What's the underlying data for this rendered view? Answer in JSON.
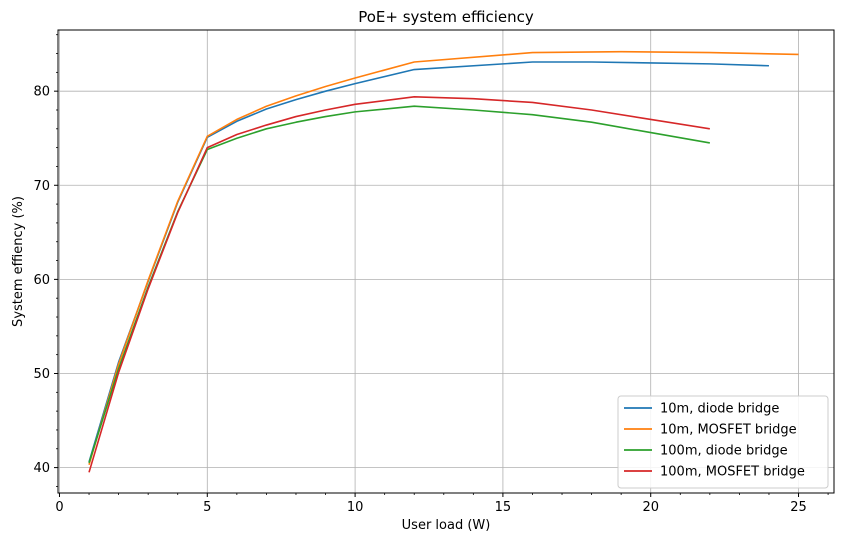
{
  "chart_data": {
    "type": "line",
    "title": "PoE+ system efficiency",
    "xlabel": "User load (W)",
    "ylabel": "System effiency (%)",
    "xlim": [
      -0.05,
      26.2
    ],
    "ylim": [
      37.3,
      86.5
    ],
    "xticks": [
      0,
      5,
      10,
      15,
      20,
      25
    ],
    "yticks": [
      40,
      50,
      60,
      70,
      80
    ],
    "grid": true,
    "legend_position": "lower-right",
    "series": [
      {
        "name": "10m, diode bridge",
        "color": "#1f77b4",
        "x": [
          1,
          2,
          3,
          4,
          5,
          6,
          7,
          8,
          9,
          10,
          12,
          16,
          18,
          20,
          22,
          24
        ],
        "y": [
          40.6,
          51.2,
          59.8,
          68.2,
          75.1,
          76.8,
          78.1,
          79.1,
          80.0,
          80.8,
          82.3,
          83.1,
          83.1,
          83.0,
          82.9,
          82.7
        ]
      },
      {
        "name": "10m, MOSFET bridge",
        "color": "#ff7f0e",
        "x": [
          1,
          2,
          3,
          4,
          5,
          6,
          7,
          8,
          9,
          10,
          12,
          16,
          19,
          22,
          25
        ],
        "y": [
          40.3,
          51.0,
          59.9,
          68.3,
          75.2,
          77.0,
          78.4,
          79.5,
          80.5,
          81.4,
          83.1,
          84.1,
          84.2,
          84.1,
          83.9
        ]
      },
      {
        "name": "100m, diode bridge",
        "color": "#2ca02c",
        "x": [
          1,
          2,
          3,
          4,
          5,
          6,
          7,
          8,
          9,
          10,
          12,
          14,
          16,
          18,
          20,
          22
        ],
        "y": [
          40.5,
          50.5,
          59.2,
          67.2,
          73.8,
          75.0,
          76.0,
          76.7,
          77.3,
          77.8,
          78.4,
          78.0,
          77.5,
          76.7,
          75.6,
          74.5
        ]
      },
      {
        "name": "100m, MOSFET bridge",
        "color": "#d62728",
        "x": [
          1,
          2,
          3,
          4,
          5,
          6,
          7,
          8,
          9,
          10,
          12,
          14,
          16,
          18,
          20,
          22
        ],
        "y": [
          39.5,
          50.1,
          59.0,
          67.1,
          74.0,
          75.4,
          76.4,
          77.3,
          78.0,
          78.6,
          79.4,
          79.2,
          78.8,
          78.0,
          77.0,
          76.0
        ]
      }
    ]
  }
}
